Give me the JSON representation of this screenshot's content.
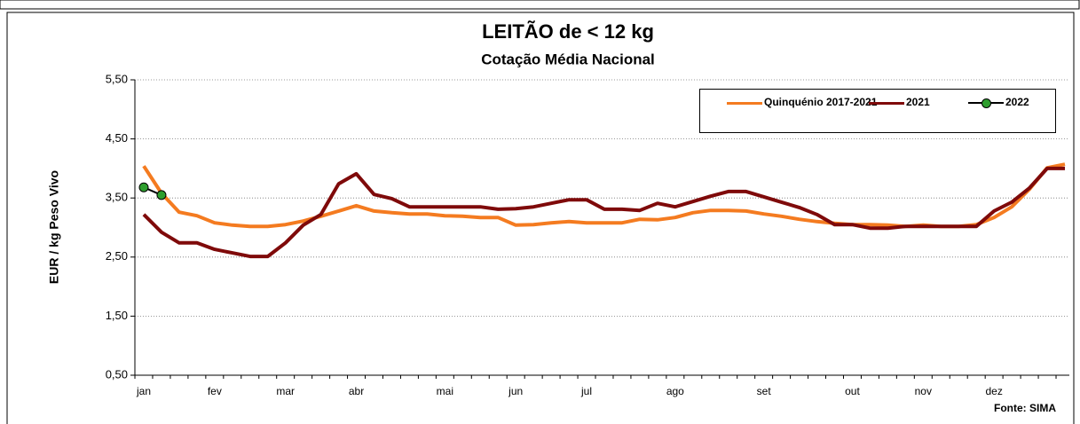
{
  "chart_data": {
    "type": "line",
    "title": "LEITÃO de < 12 kg",
    "subtitle": "Cotação Média Nacional",
    "y_label": "EUR / kg Peso Vivo",
    "source": "Fonte: SIMA",
    "categories": [
      "jan",
      null,
      null,
      null,
      "fev",
      null,
      null,
      null,
      "mar",
      null,
      null,
      null,
      "abr",
      null,
      null,
      null,
      null,
      "mai",
      null,
      null,
      null,
      "jun",
      null,
      null,
      null,
      "jul",
      null,
      null,
      null,
      null,
      "ago",
      null,
      null,
      null,
      null,
      "set",
      null,
      null,
      null,
      null,
      "out",
      null,
      null,
      null,
      "nov",
      null,
      null,
      null,
      "dez",
      null,
      null,
      null,
      null
    ],
    "series": [
      {
        "name": "Quinquénio 2017-2021",
        "color": "#f47b20",
        "values": [
          4.04,
          3.58,
          3.26,
          3.2,
          3.08,
          3.04,
          3.02,
          3.02,
          3.05,
          3.11,
          3.19,
          3.28,
          3.37,
          3.28,
          3.25,
          3.23,
          3.23,
          3.2,
          3.19,
          3.17,
          3.17,
          3.04,
          3.05,
          3.08,
          3.1,
          3.08,
          3.08,
          3.08,
          3.14,
          3.13,
          3.17,
          3.25,
          3.29,
          3.29,
          3.28,
          3.23,
          3.19,
          3.14,
          3.1,
          3.07,
          3.05,
          3.05,
          3.04,
          3.02,
          3.04,
          3.02,
          3.02,
          3.05,
          3.17,
          3.35,
          3.65,
          4.01,
          4.07
        ]
      },
      {
        "name": "2021",
        "color": "#7f0a0a",
        "values": [
          3.22,
          2.92,
          2.74,
          2.74,
          2.63,
          2.57,
          2.51,
          2.51,
          2.74,
          3.04,
          3.22,
          3.74,
          3.91,
          3.56,
          3.49,
          3.35,
          3.35,
          3.35,
          3.35,
          3.35,
          3.31,
          3.32,
          3.35,
          3.41,
          3.47,
          3.47,
          3.31,
          3.31,
          3.29,
          3.41,
          3.35,
          3.44,
          3.53,
          3.61,
          3.61,
          3.52,
          3.43,
          3.34,
          3.22,
          3.05,
          3.05,
          2.99,
          2.99,
          3.02,
          3.02,
          3.02,
          3.02,
          3.02,
          3.28,
          3.43,
          3.67,
          4.0,
          4.0
        ]
      },
      {
        "name": "2022",
        "color": "#000000",
        "marker_color": "#2e9e2e",
        "values": [
          3.68,
          3.55,
          null,
          null,
          null,
          null,
          null,
          null,
          null,
          null,
          null,
          null,
          null,
          null,
          null,
          null,
          null,
          null,
          null,
          null,
          null,
          null,
          null,
          null,
          null,
          null,
          null,
          null,
          null,
          null,
          null,
          null,
          null,
          null,
          null,
          null,
          null,
          null,
          null,
          null,
          null,
          null,
          null,
          null,
          null,
          null,
          null,
          null,
          null,
          null,
          null,
          null,
          null
        ]
      }
    ],
    "ylim": [
      0.5,
      5.5
    ],
    "yticks": [
      {
        "value": 0.5,
        "label": "0,50"
      },
      {
        "value": 1.5,
        "label": "1,50"
      },
      {
        "value": 2.5,
        "label": "2,50"
      },
      {
        "value": 3.5,
        "label": "3,50"
      },
      {
        "value": 4.5,
        "label": "4,50"
      },
      {
        "value": 5.5,
        "label": "5,50"
      }
    ],
    "grid": true
  }
}
